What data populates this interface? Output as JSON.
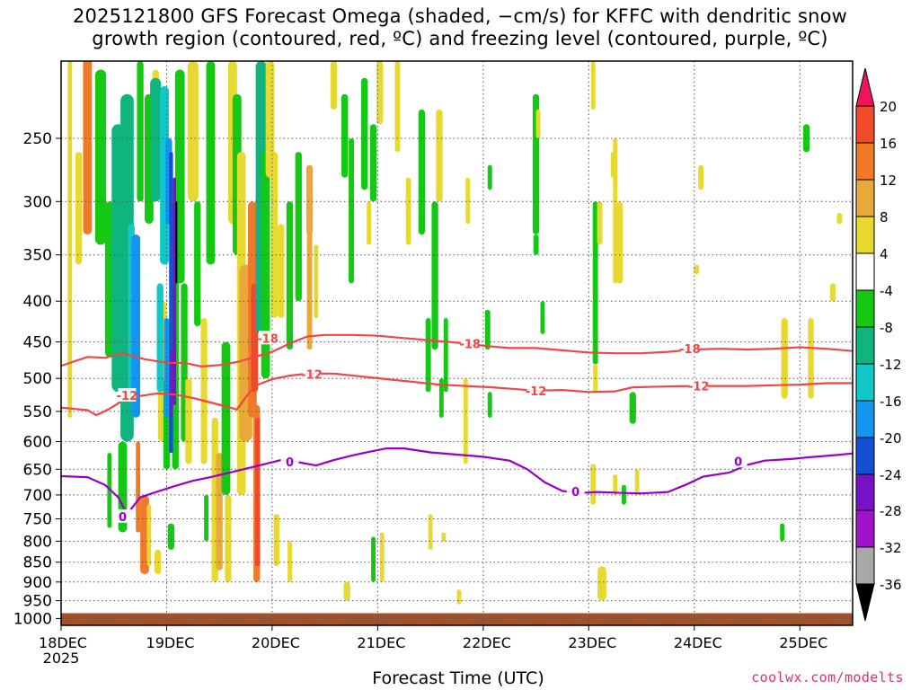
{
  "title_line1": "2025121800 GFS Forecast Omega (shaded, −cm/s) for KFFC with dendritic snow",
  "title_line2": "growth region (contoured, red, ºC) and freezing level (contoured, purple, ºC)",
  "credit": "coolwx.com/modelts",
  "chart_data": {
    "type": "heatmap",
    "title": "2025121800 GFS Forecast Omega (shaded, −cm/s) for KFFC with dendritic snow growth region (contoured, red, ºC) and freezing level (contoured, purple, ºC)",
    "xlabel": "Forecast Time (UTC)",
    "x_ticks": [
      "18DEC",
      "19DEC",
      "20DEC",
      "21DEC",
      "22DEC",
      "23DEC",
      "24DEC",
      "25DEC"
    ],
    "x_sublabel": "2025",
    "x_range_hours": [
      0,
      180
    ],
    "y_scale": "log-pressure",
    "y_ticks": [
      250,
      300,
      350,
      400,
      450,
      500,
      550,
      600,
      650,
      700,
      750,
      800,
      850,
      900,
      950,
      1000
    ],
    "y_range_hPa": [
      200,
      1020
    ],
    "grid": "dotted",
    "colorbar": {
      "ticks": [
        20,
        16,
        12,
        8,
        4,
        -4,
        -8,
        -12,
        -16,
        -20,
        -24,
        -28,
        -32,
        -36
      ],
      "colors_top_to_bottom": [
        "#f0145a",
        "#f04a28",
        "#f07a28",
        "#e8a83a",
        "#e8d832",
        "#ffffff",
        "#14c814",
        "#10b47e",
        "#10c8c8",
        "#1496f0",
        "#1450d2",
        "#7812c8",
        "#a012c8",
        "#a8a8a8",
        "#000000"
      ]
    },
    "contours": [
      {
        "name": "-18",
        "color": "#f04646",
        "points": [
          [
            0,
            482
          ],
          [
            6,
            470
          ],
          [
            10,
            471
          ],
          [
            14,
            465
          ],
          [
            19,
            473
          ],
          [
            24,
            478
          ],
          [
            28,
            478
          ],
          [
            32,
            483
          ],
          [
            36,
            481
          ],
          [
            40,
            477
          ],
          [
            44,
            470
          ],
          [
            48,
            463
          ],
          [
            52,
            452
          ],
          [
            56,
            443
          ],
          [
            60,
            441
          ],
          [
            66,
            441
          ],
          [
            72,
            442
          ],
          [
            78,
            445
          ],
          [
            84,
            448
          ],
          [
            90,
            451
          ],
          [
            96,
            455
          ],
          [
            102,
            458
          ],
          [
            108,
            458
          ],
          [
            114,
            461
          ],
          [
            120,
            464
          ],
          [
            126,
            465
          ],
          [
            132,
            465
          ],
          [
            138,
            463
          ],
          [
            144,
            460
          ],
          [
            150,
            459
          ],
          [
            156,
            460
          ],
          [
            162,
            459
          ],
          [
            168,
            457
          ],
          [
            174,
            459
          ],
          [
            180,
            462
          ]
        ]
      },
      {
        "name": "-12",
        "color": "#f04646",
        "points": [
          [
            0,
            544
          ],
          [
            6,
            548
          ],
          [
            8,
            556
          ],
          [
            11,
            546
          ],
          [
            14,
            533
          ],
          [
            18,
            526
          ],
          [
            22,
            522
          ],
          [
            26,
            524
          ],
          [
            30,
            529
          ],
          [
            34,
            536
          ],
          [
            38,
            543
          ],
          [
            40,
            547
          ],
          [
            42,
            528
          ],
          [
            44,
            511
          ],
          [
            48,
            501
          ],
          [
            52,
            496
          ],
          [
            56,
            493
          ],
          [
            62,
            493
          ],
          [
            68,
            497
          ],
          [
            74,
            501
          ],
          [
            80,
            505
          ],
          [
            86,
            509
          ],
          [
            92,
            511
          ],
          [
            98,
            513
          ],
          [
            104,
            516
          ],
          [
            108,
            518
          ],
          [
            114,
            517
          ],
          [
            120,
            520
          ],
          [
            126,
            519
          ],
          [
            130,
            513
          ],
          [
            136,
            512
          ],
          [
            144,
            511
          ],
          [
            150,
            511
          ],
          [
            156,
            511
          ],
          [
            162,
            510
          ],
          [
            168,
            509
          ],
          [
            174,
            507
          ],
          [
            180,
            507
          ]
        ]
      },
      {
        "name": "0",
        "color": "#9600c8",
        "points": [
          [
            0,
            663
          ],
          [
            6,
            665
          ],
          [
            10,
            680
          ],
          [
            13,
            705
          ],
          [
            15,
            740
          ],
          [
            18,
            705
          ],
          [
            22,
            693
          ],
          [
            26,
            682
          ],
          [
            30,
            672
          ],
          [
            34,
            665
          ],
          [
            38,
            657
          ],
          [
            42,
            649
          ],
          [
            46,
            641
          ],
          [
            50,
            633
          ],
          [
            54,
            637
          ],
          [
            58,
            643
          ],
          [
            62,
            633
          ],
          [
            66,
            625
          ],
          [
            70,
            618
          ],
          [
            74,
            612
          ],
          [
            78,
            612
          ],
          [
            84,
            619
          ],
          [
            90,
            623
          ],
          [
            96,
            627
          ],
          [
            102,
            634
          ],
          [
            106,
            650
          ],
          [
            110,
            675
          ],
          [
            114,
            692
          ],
          [
            118,
            696
          ],
          [
            122,
            694
          ],
          [
            128,
            696
          ],
          [
            132,
            697
          ],
          [
            138,
            694
          ],
          [
            142,
            680
          ],
          [
            146,
            664
          ],
          [
            152,
            656
          ],
          [
            156,
            642
          ],
          [
            160,
            634
          ],
          [
            166,
            631
          ],
          [
            170,
            628
          ],
          [
            176,
            624
          ],
          [
            180,
            621
          ]
        ]
      }
    ]
  }
}
